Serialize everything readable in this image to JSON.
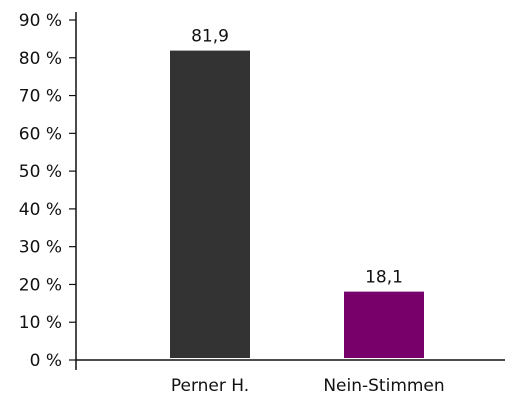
{
  "chart_data": {
    "type": "bar",
    "categories": [
      "Perner H.",
      "Nein-Stimmen"
    ],
    "values": [
      81.9,
      18.1
    ],
    "value_labels": [
      "81,9",
      "18,1"
    ],
    "colors": [
      "#333333",
      "#77006b"
    ],
    "ylim": [
      0,
      90
    ],
    "yticks": [
      0,
      10,
      20,
      30,
      40,
      50,
      60,
      70,
      80,
      90
    ],
    "ytick_labels": [
      "0 %",
      "10 %",
      "20 %",
      "30 %",
      "40 %",
      "50 %",
      "60 %",
      "70 %",
      "80 %",
      "90 %"
    ],
    "grid": false,
    "legend": "none"
  }
}
